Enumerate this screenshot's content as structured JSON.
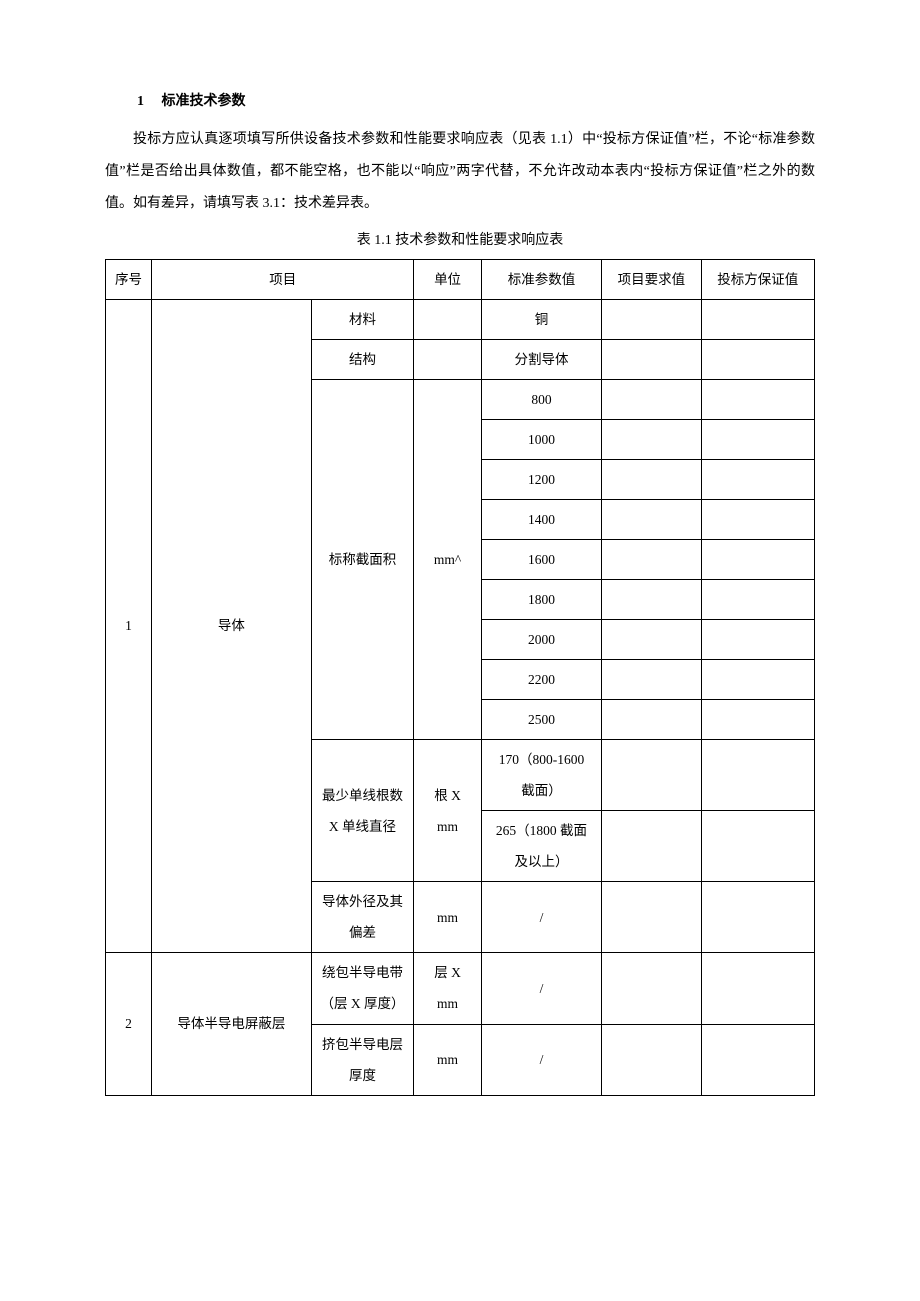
{
  "heading_num": "1",
  "heading_text": "标准技术参数",
  "paragraph_parts": {
    "p1": "投标方应认真逐项填写所供设备技术参数和性能要求响应表（见表 ",
    "p1_en1": "1.1",
    "p2": "）中“投标方保证值”栏，不论“标准参数值”栏是否给出具体数值，都不能空格，也不能以“响应”两字代替，不允许改动本表内“投标方保证值”栏之外的数值。如有差异，请填写表 ",
    "p1_en2": "3.1",
    "p3": "：技术差异表。"
  },
  "table_title_pre": "表 ",
  "table_title_num": "1.1 ",
  "table_title_post": "技术参数和性能要求响应表",
  "headers": {
    "seq": "序号",
    "item": "项目",
    "unit": "单位",
    "std": "标准参数值",
    "req": "项目要求值",
    "bid": "投标方保证值"
  },
  "rows": {
    "seq1": "1",
    "item1": "导体",
    "sub_material": "材料",
    "sub_material_val": "铜",
    "sub_structure": "结构",
    "sub_structure_val": "分割导体",
    "sub_cross": "标称截面积",
    "sub_cross_unit": "mm^",
    "cross_vals": [
      "800",
      "1000",
      "1200",
      "1400",
      "1600",
      "1800",
      "2000",
      "2200",
      "2500"
    ],
    "sub_wire_l1": "最少单线根数",
    "sub_wire_l2": "X 单线直径",
    "sub_wire_unit_l1": "根 X",
    "sub_wire_unit_l2": "mm",
    "wire_val_l1a": "170（800-1600",
    "wire_val_l1b": "截面）",
    "wire_val_l2a": "265（1800 截面",
    "wire_val_l2b": "及以上）",
    "sub_diam_l1": "导体外径及其",
    "sub_diam_l2": "偏差",
    "sub_diam_unit": "mm",
    "sub_diam_val": "/",
    "seq2": "2",
    "item2": "导体半导电屏蔽层",
    "sub_wrap_l1": "绕包半导电带",
    "sub_wrap_l2": "（层 X 厚度）",
    "sub_wrap_unit_l1": "层 X",
    "sub_wrap_unit_l2": "mm",
    "sub_wrap_val": "/",
    "sub_ext_l1": "挤包半导电层",
    "sub_ext_l2": "厚度",
    "sub_ext_unit": "mm",
    "sub_ext_val": "/"
  },
  "colors": {
    "text": "#000000",
    "bg": "#ffffff",
    "border": "#000000"
  },
  "fonts": {
    "cn": "SimSun",
    "en": "Times New Roman",
    "base_size_pt": 10.5
  }
}
